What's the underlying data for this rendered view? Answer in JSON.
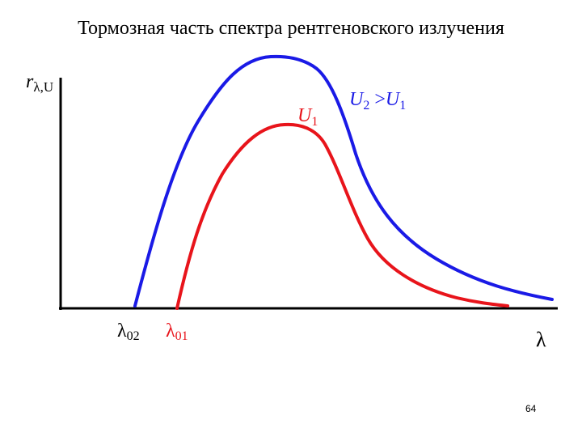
{
  "title": "Тормозная часть спектра рентгеновского излучения",
  "axis": {
    "y_label": {
      "main": "r",
      "sub": "λ,U"
    },
    "x_label": "λ"
  },
  "curves": [
    {
      "id": "U1",
      "color": "#e8141b",
      "label": {
        "main": "U",
        "sub": "1"
      }
    },
    {
      "id": "U2",
      "color": "#1a1ae6"
    }
  ],
  "relation_label": {
    "main": "U",
    "sub": "2",
    "op": " >",
    "rhs_main": "U",
    "rhs_sub": "1"
  },
  "cutoffs": [
    {
      "main": "λ",
      "sub": "02",
      "color": "#000000"
    },
    {
      "main": "λ",
      "sub": "01",
      "color": "#e8141b"
    }
  ],
  "page_number": "64"
}
